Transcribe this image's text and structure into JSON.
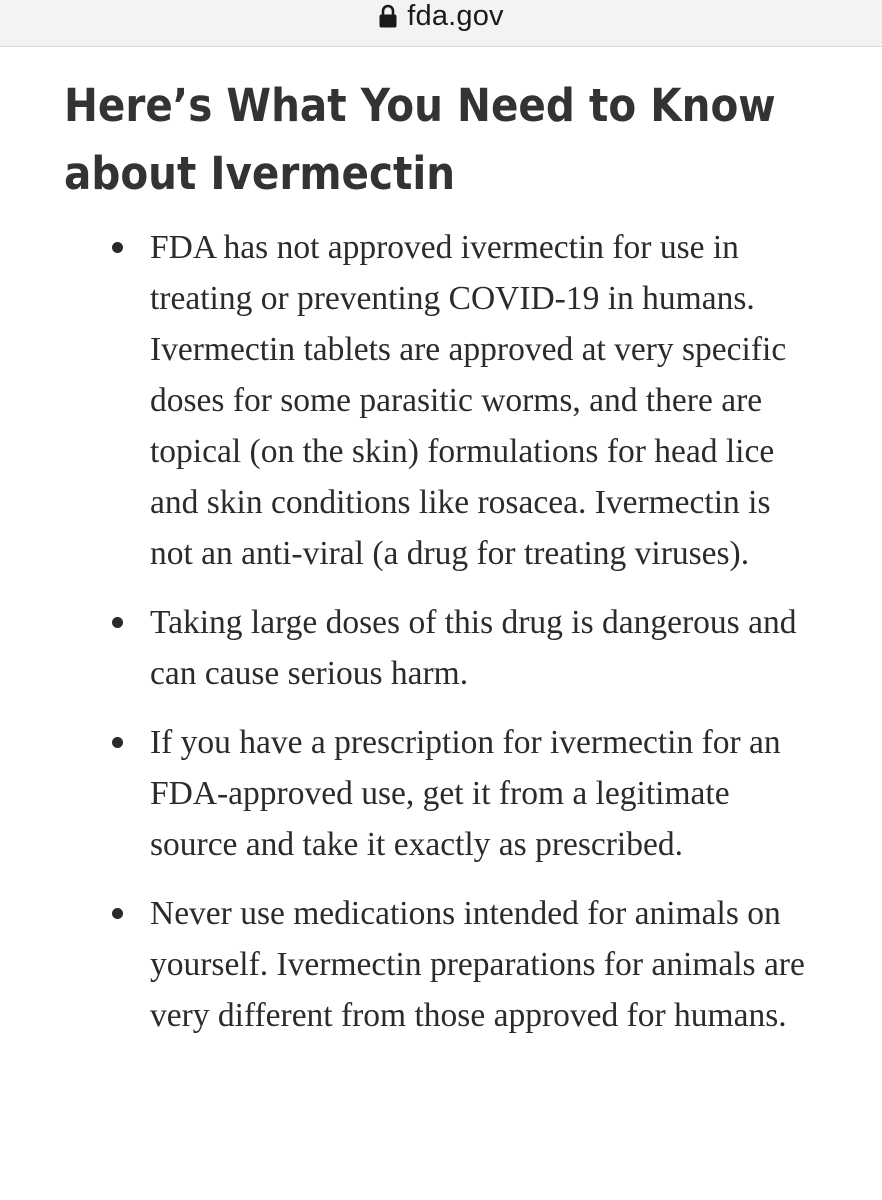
{
  "browser": {
    "domain": "fda.gov",
    "lock_icon": "lock-icon"
  },
  "article": {
    "title_line1": "Here’s What You Need to Know",
    "title_line2": "about Ivermectin",
    "bullets": [
      "FDA has not approved ivermectin for use in treating or preventing COVID-19 in humans. Ivermectin tablets are approved at very specific doses for some parasitic worms, and there are topical (on the skin) formulations for head lice and skin conditions like rosacea. Ivermectin is not an anti-viral (a drug for treating viruses).",
      "Taking large doses of this drug is dangerous and can cause serious harm.",
      "If you have a prescription for ivermectin for an FDA-approved use, get it from a legitimate source and take it exactly as prescribed.",
      "Never use medications intended for animals on yourself. Ivermectin preparations for animals are very different from those approved for humans."
    ]
  }
}
